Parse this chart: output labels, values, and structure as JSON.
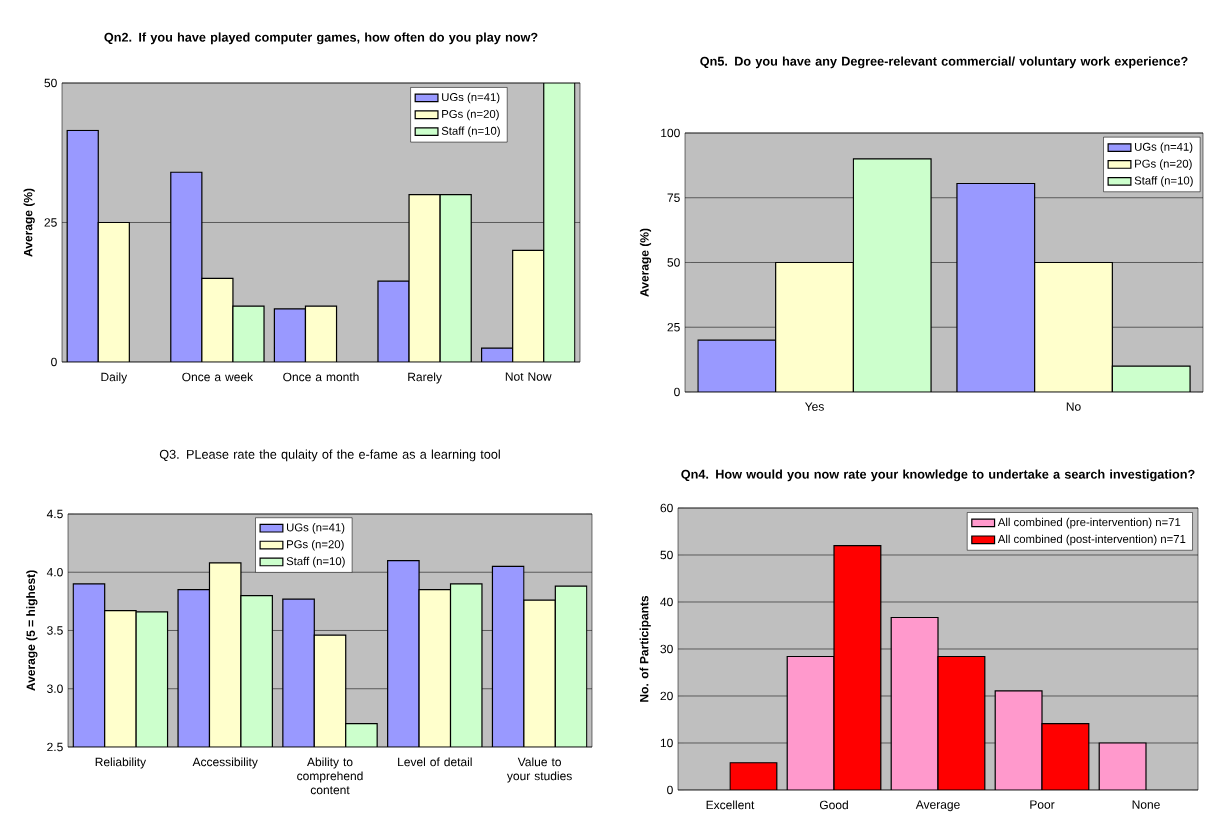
{
  "chart_data": [
    {
      "type": "bar",
      "title": "Qn2. If you have played computer games, how often do you play now?",
      "ylabel": "Average (%)",
      "categories": [
        "Daily",
        "Once a week",
        "Once a month",
        "Rarely",
        "Not Now"
      ],
      "series": [
        {
          "name": "UGs (n=41)",
          "color": "#9999ff",
          "values": [
            41.5,
            34,
            9.5,
            14.5,
            2.5
          ]
        },
        {
          "name": "PGs (n=20)",
          "color": "#ffffcc",
          "values": [
            25,
            15,
            10,
            30,
            20
          ]
        },
        {
          "name": "Staff (n=10)",
          "color": "#ccffcc",
          "values": [
            null,
            10,
            null,
            30,
            50
          ]
        }
      ],
      "ylim": [
        0,
        50
      ],
      "yticks": [
        0,
        25,
        50
      ],
      "grid": "y",
      "legend": "top right"
    },
    {
      "type": "bar",
      "title": "Qn5. Do you have any Degree-relevant commercial/ voluntary work experience?",
      "ylabel": "Average (%)",
      "categories": [
        "Yes",
        "No"
      ],
      "series": [
        {
          "name": "UGs (n=41)",
          "color": "#9999ff",
          "values": [
            20,
            80.5
          ]
        },
        {
          "name": "PGs (n=20)",
          "color": "#ffffcc",
          "values": [
            50,
            50
          ]
        },
        {
          "name": "Staff (n=10)",
          "color": "#ccffcc",
          "values": [
            90,
            10
          ]
        }
      ],
      "ylim": [
        0,
        100
      ],
      "yticks": [
        0,
        25,
        50,
        75,
        100
      ],
      "grid": "y",
      "legend": "top right"
    },
    {
      "type": "bar",
      "title": "Q3. PLease rate the qulaity of the e-fame as a learning tool",
      "ylabel": "Average (5 = highest)",
      "categories": [
        "Reliability",
        "Accessibility",
        "Ability to comprehend content",
        "Level of detail",
        "Value to your studies"
      ],
      "series": [
        {
          "name": "UGs (n=41)",
          "color": "#9999ff",
          "values": [
            3.9,
            3.85,
            3.77,
            4.1,
            4.05
          ]
        },
        {
          "name": "PGs (n=20)",
          "color": "#ffffcc",
          "values": [
            3.67,
            4.08,
            3.46,
            3.85,
            3.76
          ]
        },
        {
          "name": "Staff (n=10)",
          "color": "#ccffcc",
          "values": [
            3.66,
            3.8,
            2.7,
            3.9,
            3.88
          ]
        }
      ],
      "ylim": [
        2.5,
        4.5
      ],
      "yticks": [
        2.5,
        {
          "value": 3,
          "label": "3.0"
        },
        3.5,
        {
          "value": 4,
          "label": "4.0"
        },
        4.5
      ],
      "grid": "y",
      "legend": "top"
    },
    {
      "type": "bar",
      "title": "Qn4. How would you now rate your knowledge to undertake a search investigation?",
      "ylabel": "No. of Participants",
      "categories": [
        "Excellent",
        "Good",
        "Average",
        "Poor",
        "None"
      ],
      "series": [
        {
          "name": "All combined (pre-intervention) n=71",
          "color": "#ff99cc",
          "values": [
            null,
            28.4,
            36.7,
            21.1,
            10
          ]
        },
        {
          "name": "All combined (post-intervention) n=71",
          "color": "#ff0000",
          "values": [
            5.8,
            52,
            28.4,
            14.1,
            null
          ]
        }
      ],
      "ylim": [
        0,
        60
      ],
      "yticks": [
        0,
        10,
        20,
        30,
        40,
        50,
        60
      ],
      "grid": "y",
      "legend": "top right"
    }
  ]
}
